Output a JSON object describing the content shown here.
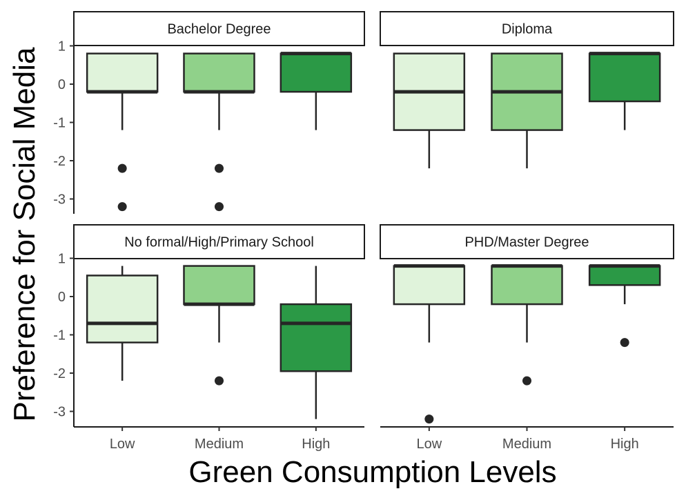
{
  "chart_data": {
    "type": "boxplot",
    "xlabel": "Green Consumption Levels",
    "ylabel": "Preference for Social Media",
    "categories": [
      "Low",
      "Medium",
      "High"
    ],
    "yticks": [
      1,
      0,
      -1,
      -2,
      -3
    ],
    "ylim": [
      -3.35,
      1.9
    ],
    "fill_colors": {
      "Low": "#e0f3db",
      "Medium": "#90d18a",
      "High": "#2b9946"
    },
    "panels": [
      {
        "title": "Bachelor Degree",
        "boxes": [
          {
            "category": "Low",
            "whisker_low": -1.2,
            "q1": -0.2,
            "median": -0.2,
            "q3": 0.8,
            "whisker_high": 0.8,
            "outliers": [
              -2.2,
              -3.2
            ]
          },
          {
            "category": "Medium",
            "whisker_low": -1.2,
            "q1": -0.2,
            "median": -0.2,
            "q3": 0.8,
            "whisker_high": 0.8,
            "outliers": [
              -2.2,
              -3.2
            ]
          },
          {
            "category": "High",
            "whisker_low": -1.2,
            "q1": -0.2,
            "median": 0.8,
            "q3": 0.8,
            "whisker_high": 0.8,
            "outliers": []
          }
        ]
      },
      {
        "title": "Diploma",
        "boxes": [
          {
            "category": "Low",
            "whisker_low": -2.2,
            "q1": -1.2,
            "median": -0.2,
            "q3": 0.8,
            "whisker_high": 0.8,
            "outliers": []
          },
          {
            "category": "Medium",
            "whisker_low": -2.2,
            "q1": -1.2,
            "median": -0.2,
            "q3": 0.8,
            "whisker_high": 0.8,
            "outliers": []
          },
          {
            "category": "High",
            "whisker_low": -1.2,
            "q1": -0.45,
            "median": 0.8,
            "q3": 0.8,
            "whisker_high": 0.8,
            "outliers": []
          }
        ]
      },
      {
        "title": "No formal/High/Primary School",
        "boxes": [
          {
            "category": "Low",
            "whisker_low": -2.2,
            "q1": -1.2,
            "median": -0.7,
            "q3": 0.55,
            "whisker_high": 0.8,
            "outliers": []
          },
          {
            "category": "Medium",
            "whisker_low": -1.2,
            "q1": -0.2,
            "median": -0.2,
            "q3": 0.8,
            "whisker_high": 0.8,
            "outliers": [
              -2.2
            ]
          },
          {
            "category": "High",
            "whisker_low": -3.2,
            "q1": -1.95,
            "median": -0.7,
            "q3": -0.2,
            "whisker_high": 0.8,
            "outliers": []
          }
        ]
      },
      {
        "title": "PHD/Master Degree",
        "boxes": [
          {
            "category": "Low",
            "whisker_low": -1.2,
            "q1": -0.2,
            "median": 0.8,
            "q3": 0.8,
            "whisker_high": 0.8,
            "outliers": [
              -3.2
            ]
          },
          {
            "category": "Medium",
            "whisker_low": -1.2,
            "q1": -0.2,
            "median": 0.8,
            "q3": 0.8,
            "whisker_high": 0.8,
            "outliers": [
              -2.2
            ]
          },
          {
            "category": "High",
            "whisker_low": -0.2,
            "q1": 0.3,
            "median": 0.8,
            "q3": 0.8,
            "whisker_high": 0.8,
            "outliers": [
              -1.2
            ]
          }
        ]
      }
    ]
  }
}
